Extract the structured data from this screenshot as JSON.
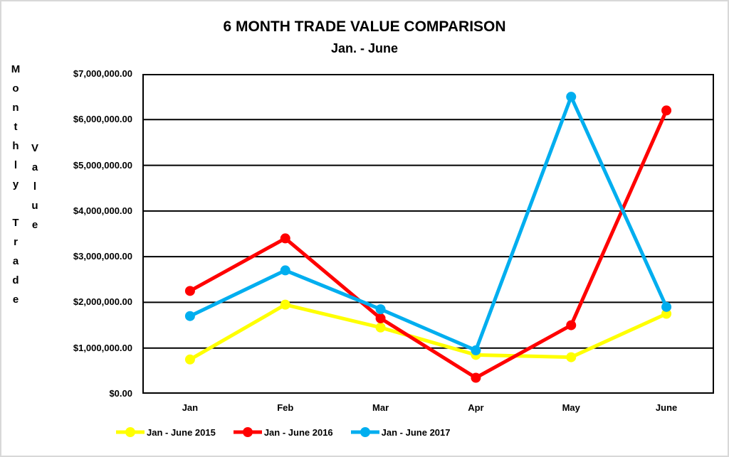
{
  "window": {
    "background": "#FFFFFF",
    "frame_border_color": "#D8D8D8"
  },
  "header": {
    "title": "6 MONTH TRADE VALUE COMPARISON",
    "subtitle": "Jan. - June"
  },
  "y_axis": {
    "vertical_label_primary": "Monthly Trade",
    "vertical_label_secondary": "Value",
    "tick_labels": [
      "$7,000,000.00",
      "$6,000,000.00",
      "$5,000,000.00",
      "$4,000,000.00",
      "$3,000,000.00",
      "$2,000,000.00",
      "$1,000,000.00",
      "$0.00"
    ]
  },
  "x_axis": {
    "labels": [
      "Jan",
      "Feb",
      "Mar",
      "Apr",
      "May",
      "June"
    ]
  },
  "legend": {
    "items": [
      {
        "label": "Jan - June 2015",
        "color": "#FFFF00"
      },
      {
        "label": "Jan - June 2016",
        "color": "#FF0000"
      },
      {
        "label": "Jan - June 2017",
        "color": "#00AEEF"
      }
    ]
  },
  "chart_data": {
    "type": "line",
    "title": "6 MONTH TRADE VALUE COMPARISON",
    "subtitle": "Jan. - June",
    "categories": [
      "Jan",
      "Feb",
      "Mar",
      "Apr",
      "May",
      "June"
    ],
    "series": [
      {
        "name": "Jan - June 2015",
        "color": "#FFFF00",
        "values": [
          750000,
          1950000,
          1450000,
          850000,
          800000,
          1750000
        ]
      },
      {
        "name": "Jan - June 2016",
        "color": "#FF0000",
        "values": [
          2250000,
          3400000,
          1650000,
          350000,
          1500000,
          6200000
        ]
      },
      {
        "name": "Jan - June 2017",
        "color": "#00AEEF",
        "values": [
          1700000,
          2700000,
          1850000,
          950000,
          6500000,
          1900000
        ]
      }
    ],
    "xlabel": "",
    "ylabel": "Monthly Trade Value",
    "ylim": [
      0,
      7000000
    ],
    "y_tick_step": 1000000,
    "y_tick_format": "$#,##0.00",
    "grid": true,
    "gridline_color": "#000000",
    "line_width": 5,
    "marker": "circle",
    "marker_radius": 7,
    "legend_position": "bottom"
  }
}
